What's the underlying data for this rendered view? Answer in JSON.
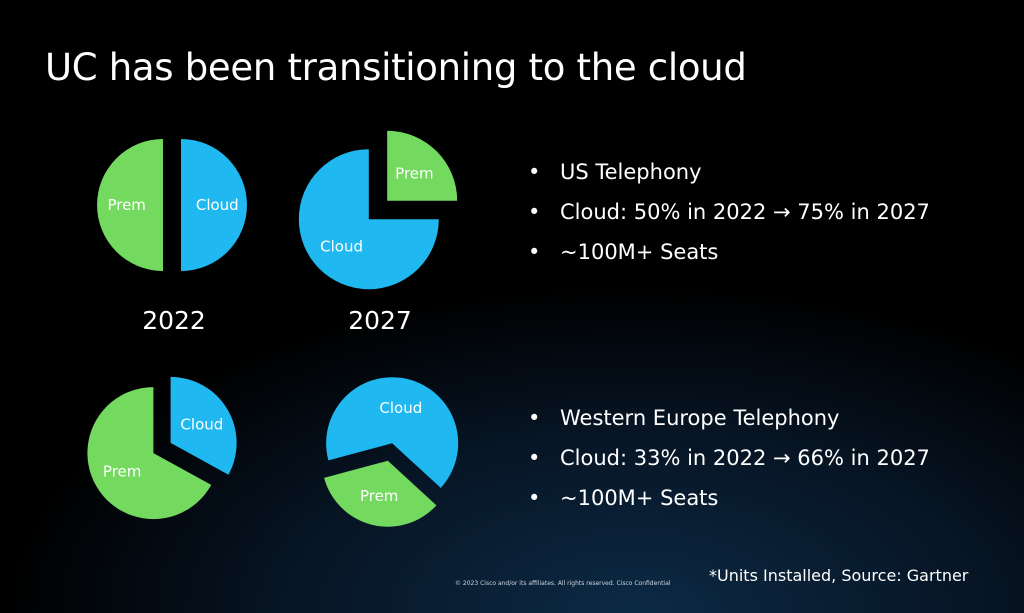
{
  "title": "UC has been transitioning to the cloud",
  "colors": {
    "cloud": "#1fb8f0",
    "prem": "#74d95f",
    "background": "#000000"
  },
  "chart_data": [
    {
      "type": "pie",
      "region": "US Telephony",
      "year_label": "2022",
      "slices": [
        {
          "label": "Cloud",
          "percent": 50
        },
        {
          "label": "Prem",
          "percent": 50
        }
      ]
    },
    {
      "type": "pie",
      "region": "US Telephony",
      "year_label": "2027",
      "slices": [
        {
          "label": "Cloud",
          "percent": 75
        },
        {
          "label": "Prem",
          "percent": 25
        }
      ]
    },
    {
      "type": "pie",
      "region": "Western Europe Telephony",
      "year_label": "2022",
      "slices": [
        {
          "label": "Cloud",
          "percent": 33
        },
        {
          "label": "Prem",
          "percent": 67
        }
      ]
    },
    {
      "type": "pie",
      "region": "Western Europe Telephony",
      "year_label": "2027",
      "slices": [
        {
          "label": "Cloud",
          "percent": 66
        },
        {
          "label": "Prem",
          "percent": 34
        }
      ]
    }
  ],
  "bullets_us": [
    "US Telephony",
    "Cloud: 50% in 2022 → 75% in 2027",
    "~100M+ Seats"
  ],
  "bullets_eu": [
    "Western Europe Telephony",
    "Cloud:  33% in 2022 → 66% in 2027",
    "~100M+ Seats"
  ],
  "source_note": "*Units Installed, Source: Gartner",
  "copyright": "© 2023 Cisco and/or its affiliates. All rights reserved. Cisco Confidential"
}
